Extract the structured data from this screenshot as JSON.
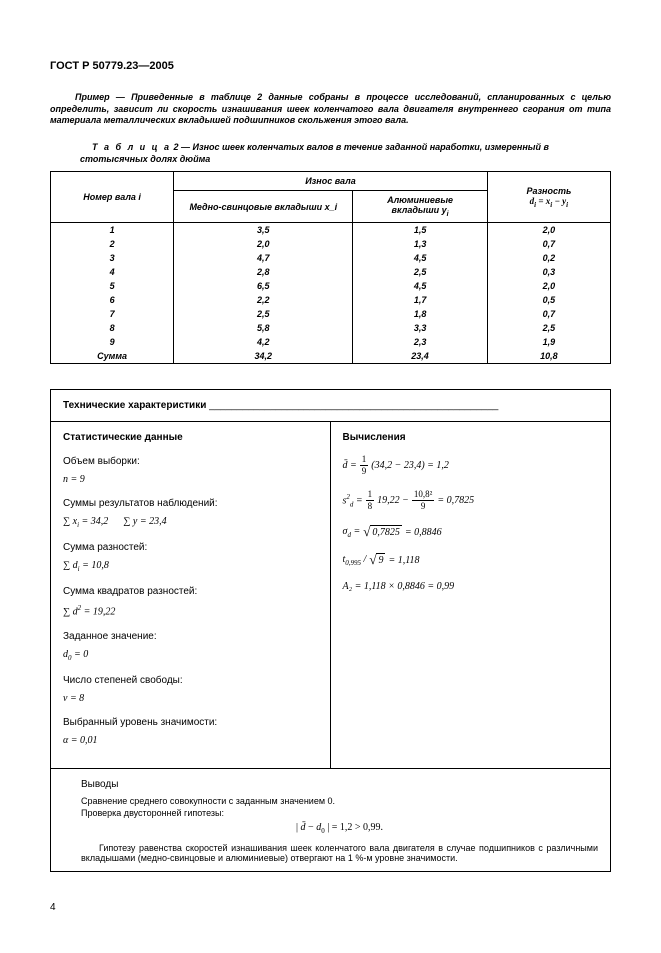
{
  "header": "ГОСТ Р 50779.23—2005",
  "example_text": "Пример — Приведенные в таблице 2 данные собраны в процессе исследований, спланированных с целью определить, зависит ли скорость изнашивания шеек коленчатого вала двигателя внутреннего сгорания от типа материала металлических вкладышей подшипников скольжения этого вала.",
  "table_caption_prefix": "Т а б л и ц а",
  "table_caption": "2 — Износ шеек коленчатых валов в течение заданной наработки, измеренный в стотысячных долях дюйма",
  "table": {
    "col0": "Номер вала i",
    "col_group": "Износ вала",
    "col1": "Медно-свинцовые вкладыши x_i",
    "col2": "Алюминиевые вкладыши y_i",
    "col3_line1": "Разность",
    "col3_line2": "d_i = x_i − y_i",
    "rows": [
      {
        "i": "1",
        "x": "3,5",
        "y": "1,5",
        "d": "2,0"
      },
      {
        "i": "2",
        "x": "2,0",
        "y": "1,3",
        "d": "0,7"
      },
      {
        "i": "3",
        "x": "4,7",
        "y": "4,5",
        "d": "0,2"
      },
      {
        "i": "4",
        "x": "2,8",
        "y": "2,5",
        "d": "0,3"
      },
      {
        "i": "5",
        "x": "6,5",
        "y": "4,5",
        "d": "2,0"
      },
      {
        "i": "6",
        "x": "2,2",
        "y": "1,7",
        "d": "0,5"
      },
      {
        "i": "7",
        "x": "2,5",
        "y": "1,8",
        "d": "0,7"
      },
      {
        "i": "8",
        "x": "5,8",
        "y": "3,3",
        "d": "2,5"
      },
      {
        "i": "9",
        "x": "4,2",
        "y": "2,3",
        "d": "1,9"
      }
    ],
    "sum_label": "Сумма",
    "sum_x": "34,2",
    "sum_y": "23,4",
    "sum_d": "10,8"
  },
  "tech_heading": "Технические характеристики",
  "stats": {
    "heading": "Статистические данные",
    "vol_label": "Объем выборки:",
    "vol_value": "n = 9",
    "sums_label": "Суммы результатов наблюдений:",
    "sum_x_expr": "∑ x_i = 34,2",
    "sum_y_expr": "∑ y = 23,4",
    "sum_d_label": "Сумма разностей:",
    "sum_d_expr": "∑ d_i = 10,8",
    "sum_d2_label": "Сумма квадратов разностей:",
    "sum_d2_expr": "∑ d² = 19,22",
    "given_label": "Заданное значение:",
    "given_expr": "d₀ = 0",
    "dof_label": "Число степеней свободы:",
    "dof_expr": "ν = 8",
    "alpha_label": "Выбранный уровень значимости:",
    "alpha_expr": "α = 0,01"
  },
  "calc": {
    "heading": "Вычисления",
    "dbar_lhs": "d̄ =",
    "dbar_num": "1",
    "dbar_den": "9",
    "dbar_rest": "(34,2 − 23,4) = 1,2",
    "s2_lhs": "s²_d =",
    "s2_num1": "1",
    "s2_den1": "8",
    "s2_mid": "19,22 −",
    "s2_num2": "10,8²",
    "s2_den2": "9",
    "s2_rest": "= 0,7825",
    "sigma_lhs": "σ_d =",
    "sigma_rad": "0,7825",
    "sigma_rest": "= 0,8846",
    "t_lhs": "t₀,₉₉₅ /",
    "t_rad": "9",
    "t_rest": "= 1,118",
    "A_expr": "A₂ = 1,118 × 0,8846 = 0,99"
  },
  "conclusions": {
    "heading": "Выводы",
    "line1": "Сравнение среднего совокупности с заданным значением 0.",
    "line2": "Проверка двусторонней гипотезы:",
    "formula": "| d̄ − d₀ | = 1,2 > 0,99.",
    "final": "Гипотезу равенства скоростей изнашивания шеек коленчатого вала двигателя в случае подшипников с различными вкладышами (медно-свинцовые и алюминиевые) отвергают на 1 %-м уровне значимости."
  },
  "page_number": "4"
}
